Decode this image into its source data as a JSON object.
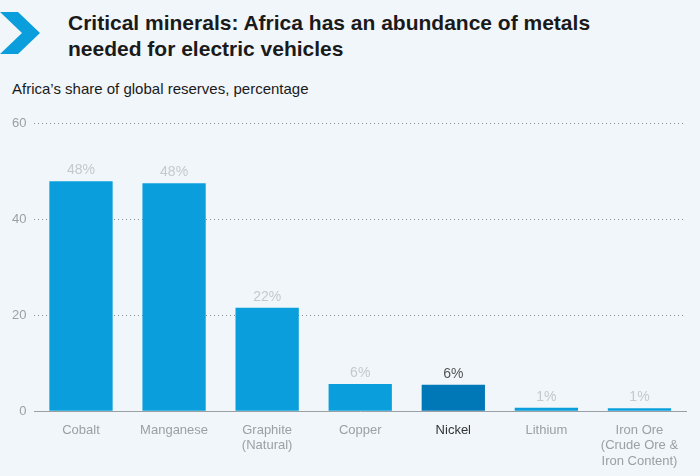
{
  "chart_data": {
    "type": "bar",
    "title": "Critical minerals: Africa has an abundance of metals needed for electric vehicles",
    "subtitle": "Africa’s share of global reserves, percentage",
    "categories": [
      "Cobalt",
      "Manganese",
      [
        "Graphite",
        "(Natural)"
      ],
      "Copper",
      "Nickel",
      "Lithium",
      [
        "Iron Ore",
        "(Crude Ore &",
        "Iron Content)"
      ]
    ],
    "values": [
      48,
      47.6,
      21.6,
      5.7,
      5.5,
      0.7,
      0.6
    ],
    "value_labels": [
      "48%",
      "48%",
      "22%",
      "6%",
      "6%",
      "1%",
      "1%"
    ],
    "colors": [
      "#0a9fdc",
      "#0a9fdc",
      "#0a9fdc",
      "#0a9fdc",
      "#0077b6",
      "#0a9fdc",
      "#0a9fdc"
    ],
    "ylim": [
      0,
      60
    ],
    "yticks": [
      0,
      20,
      40,
      60
    ],
    "grid": true,
    "data_labels": true
  }
}
